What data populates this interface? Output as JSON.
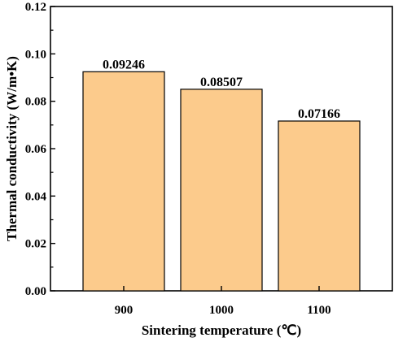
{
  "chart_data": {
    "type": "bar",
    "categories": [
      "900",
      "1000",
      "1100"
    ],
    "values": [
      0.09246,
      0.08507,
      0.07166
    ],
    "data_labels": [
      "0.09246",
      "0.08507",
      "0.07166"
    ],
    "title": "",
    "xlabel": "Sintering temperature (℃)",
    "ylabel": "Thermal conductivity (W/m•K)",
    "ylim": [
      0,
      0.12
    ],
    "yticks": [
      0.0,
      0.02,
      0.04,
      0.06,
      0.08,
      0.1,
      0.12
    ],
    "ytick_labels": [
      "0.00",
      "0.02",
      "0.04",
      "0.06",
      "0.08",
      "0.10",
      "0.12"
    ],
    "bar_color": "#FCCB8C",
    "bar_edge_color": "#000000",
    "grid": false,
    "legend": "none"
  }
}
